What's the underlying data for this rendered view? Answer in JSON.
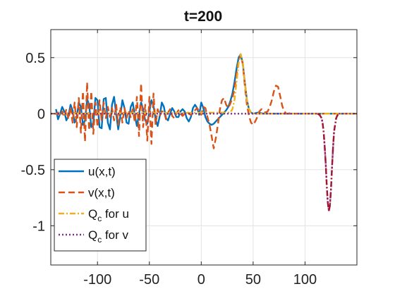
{
  "chart_data": {
    "type": "line",
    "title": "t=200",
    "xlabel": "",
    "ylabel": "",
    "xlim": [
      -145,
      150
    ],
    "ylim": [
      -1.35,
      0.75
    ],
    "xticks": [
      -100,
      -50,
      0,
      50,
      100
    ],
    "yticks": [
      -1,
      -0.5,
      0,
      0.5
    ],
    "xtick_labels": [
      "-100",
      "-50",
      "0",
      "50",
      "100"
    ],
    "ytick_labels": [
      "-1",
      "-0.5",
      "0",
      "0.5"
    ],
    "grid": true,
    "legend_position": "bottom-left",
    "legend": [
      {
        "label": "u(x,t)",
        "subscript": "",
        "suffix": ""
      },
      {
        "label": "v(x,t)",
        "subscript": "",
        "suffix": ""
      },
      {
        "label": "Q",
        "subscript": "c",
        "suffix": " for u"
      },
      {
        "label": "Q",
        "subscript": "c",
        "suffix": " for v"
      }
    ],
    "series": [
      {
        "name": "u(x,t)",
        "color": "#0072BD",
        "style": "solid",
        "x": [
          -140,
          -138,
          -136,
          -134,
          -132,
          -130,
          -128,
          -126,
          -124,
          -122,
          -120,
          -118,
          -116,
          -114,
          -112,
          -110,
          -108,
          -106,
          -104,
          -102,
          -100,
          -98,
          -96,
          -94,
          -92,
          -90,
          -88,
          -86,
          -84,
          -82,
          -80,
          -78,
          -76,
          -74,
          -72,
          -70,
          -68,
          -66,
          -64,
          -62,
          -60,
          -58,
          -56,
          -54,
          -52,
          -50,
          -48,
          -46,
          -44,
          -42,
          -40,
          -38,
          -36,
          -34,
          -32,
          -30,
          -28,
          -26,
          -24,
          -22,
          -20,
          -18,
          -16,
          -14,
          -12,
          -10,
          -8,
          -6,
          -4,
          -2,
          0,
          2,
          4,
          6,
          8,
          10,
          12,
          14,
          16,
          18,
          20,
          22,
          24,
          26,
          28,
          30,
          32,
          34,
          36,
          38,
          40,
          42,
          44,
          46,
          48,
          50,
          55,
          60,
          70,
          80,
          90,
          100,
          110,
          120,
          130,
          140,
          150
        ],
        "y": [
          0.04,
          -0.05,
          0.0,
          0.06,
          0.02,
          -0.06,
          -0.02,
          0.08,
          0.03,
          -0.08,
          -0.03,
          0.1,
          0.06,
          -0.1,
          -0.06,
          0.13,
          0.08,
          -0.12,
          -0.08,
          0.14,
          0.12,
          -0.12,
          -0.13,
          0.13,
          0.14,
          -0.08,
          -0.14,
          0.08,
          0.15,
          0.0,
          -0.14,
          -0.02,
          0.12,
          0.05,
          -0.08,
          -0.09,
          0.06,
          0.1,
          -0.02,
          -0.11,
          0.0,
          0.1,
          0.04,
          -0.06,
          -0.09,
          0.02,
          0.12,
          0.07,
          -0.05,
          -0.11,
          -0.02,
          0.1,
          0.06,
          -0.04,
          -0.06,
          0.0,
          0.05,
          0.02,
          -0.03,
          -0.03,
          0.02,
          0.04,
          0.02,
          -0.04,
          -0.07,
          -0.03,
          0.05,
          0.08,
          0.05,
          -0.01,
          0.1,
          0.05,
          -0.03,
          -0.07,
          -0.09,
          -0.1,
          -0.09,
          -0.07,
          -0.05,
          -0.03,
          -0.01,
          0.01,
          0.03,
          0.06,
          0.11,
          0.18,
          0.28,
          0.4,
          0.5,
          0.53,
          0.45,
          0.28,
          0.12,
          0.04,
          0.01,
          0.0,
          0.01,
          0.0,
          0.0,
          0.0,
          0.0,
          0.0,
          0.0,
          0.0,
          0.0,
          0.0,
          0.0
        ]
      },
      {
        "name": "v(x,t)",
        "color": "#D95319",
        "style": "dashed",
        "x": [
          -140,
          -138,
          -136,
          -134,
          -132,
          -130,
          -128,
          -126,
          -124,
          -122,
          -120,
          -118,
          -116,
          -114,
          -112,
          -110,
          -108,
          -106,
          -104,
          -102,
          -100,
          -98,
          -96,
          -94,
          -92,
          -90,
          -88,
          -86,
          -84,
          -82,
          -80,
          -78,
          -76,
          -74,
          -72,
          -70,
          -68,
          -66,
          -64,
          -62,
          -60,
          -58,
          -56,
          -54,
          -52,
          -50,
          -48,
          -46,
          -44,
          -42,
          -40,
          -38,
          -36,
          -34,
          -32,
          -30,
          -28,
          -26,
          -24,
          -22,
          -20,
          -18,
          -16,
          -14,
          -12,
          -10,
          -8,
          -6,
          -4,
          -2,
          0,
          2,
          4,
          6,
          8,
          10,
          12,
          14,
          16,
          18,
          20,
          22,
          24,
          26,
          28,
          30,
          32,
          34,
          36,
          38,
          40,
          42,
          44,
          46,
          48,
          50,
          52,
          54,
          56,
          58,
          60,
          62,
          64,
          66,
          68,
          70,
          72,
          74,
          76,
          78,
          80,
          82,
          84,
          86,
          88,
          90,
          95,
          100,
          110,
          120,
          130,
          140,
          150
        ],
        "y": [
          -0.01,
          0.01,
          -0.02,
          0.02,
          -0.03,
          0.04,
          -0.05,
          0.06,
          -0.08,
          0.1,
          -0.12,
          0.14,
          -0.17,
          0.2,
          -0.25,
          0.28,
          -0.15,
          0.2,
          -0.18,
          0.1,
          -0.12,
          0.12,
          -0.06,
          0.1,
          -0.04,
          0.06,
          -0.03,
          0.05,
          -0.06,
          0.08,
          -0.1,
          0.06,
          -0.08,
          0.05,
          -0.04,
          0.03,
          -0.03,
          0.04,
          -0.08,
          0.15,
          -0.2,
          0.27,
          -0.12,
          0.08,
          -0.24,
          0.15,
          -0.27,
          0.18,
          -0.1,
          0.04,
          -0.02,
          0.02,
          0.02,
          -0.05,
          0.01,
          0.04,
          -0.02,
          -0.04,
          0.0,
          0.03,
          0.0,
          -0.02,
          0.0,
          0.02,
          0.0,
          -0.01,
          0.01,
          0.03,
          0.05,
          0.02,
          -0.01,
          0.06,
          0.05,
          -0.03,
          -0.1,
          -0.2,
          -0.31,
          -0.22,
          -0.1,
          0.04,
          0.12,
          0.14,
          0.08,
          0.05,
          0.09,
          0.14,
          0.22,
          0.35,
          0.47,
          0.53,
          0.44,
          0.25,
          0.08,
          -0.02,
          -0.08,
          -0.1,
          -0.07,
          -0.03,
          0.02,
          0.04,
          0.02,
          0.01,
          0.02,
          0.06,
          0.12,
          0.2,
          0.25,
          0.24,
          0.16,
          0.07,
          0.02,
          0.0,
          0.0,
          0.01,
          0.0,
          0.0,
          0.0,
          0.0,
          0.0,
          0.0,
          0.0,
          0.0,
          0.0
        ]
      },
      {
        "name": "Q_c for u",
        "color": "#EDB120",
        "style": "dashdot",
        "x": [
          -145,
          28,
          30,
          32,
          34,
          36,
          38,
          40,
          42,
          44,
          46,
          48,
          50,
          150
        ],
        "y": [
          0.0,
          0.01,
          0.04,
          0.12,
          0.28,
          0.45,
          0.53,
          0.46,
          0.28,
          0.12,
          0.04,
          0.01,
          0.0,
          0.0
        ]
      },
      {
        "name": "Q_c for v",
        "color": "#7E2F8E",
        "style": "dotted",
        "x": [
          -145,
          112,
          114,
          116,
          117,
          118,
          119,
          120,
          121,
          122,
          123,
          124,
          125,
          126,
          127,
          128,
          130,
          132,
          150
        ],
        "y": [
          0.0,
          0.0,
          -0.01,
          -0.04,
          -0.09,
          -0.17,
          -0.3,
          -0.46,
          -0.65,
          -0.8,
          -0.87,
          -0.82,
          -0.68,
          -0.48,
          -0.3,
          -0.16,
          -0.04,
          0.0,
          0.0
        ]
      },
      {
        "name": "v(x,t) overlay",
        "color": "#A2142F",
        "style": "dashdot",
        "legend": false,
        "x": [
          112,
          114,
          116,
          117,
          118,
          119,
          120,
          121,
          122,
          123,
          124,
          125,
          126,
          127,
          128,
          130,
          132
        ],
        "y": [
          0.0,
          -0.01,
          -0.04,
          -0.09,
          -0.17,
          -0.3,
          -0.46,
          -0.65,
          -0.8,
          -0.87,
          -0.82,
          -0.68,
          -0.48,
          -0.3,
          -0.16,
          -0.04,
          0.0
        ]
      }
    ]
  }
}
